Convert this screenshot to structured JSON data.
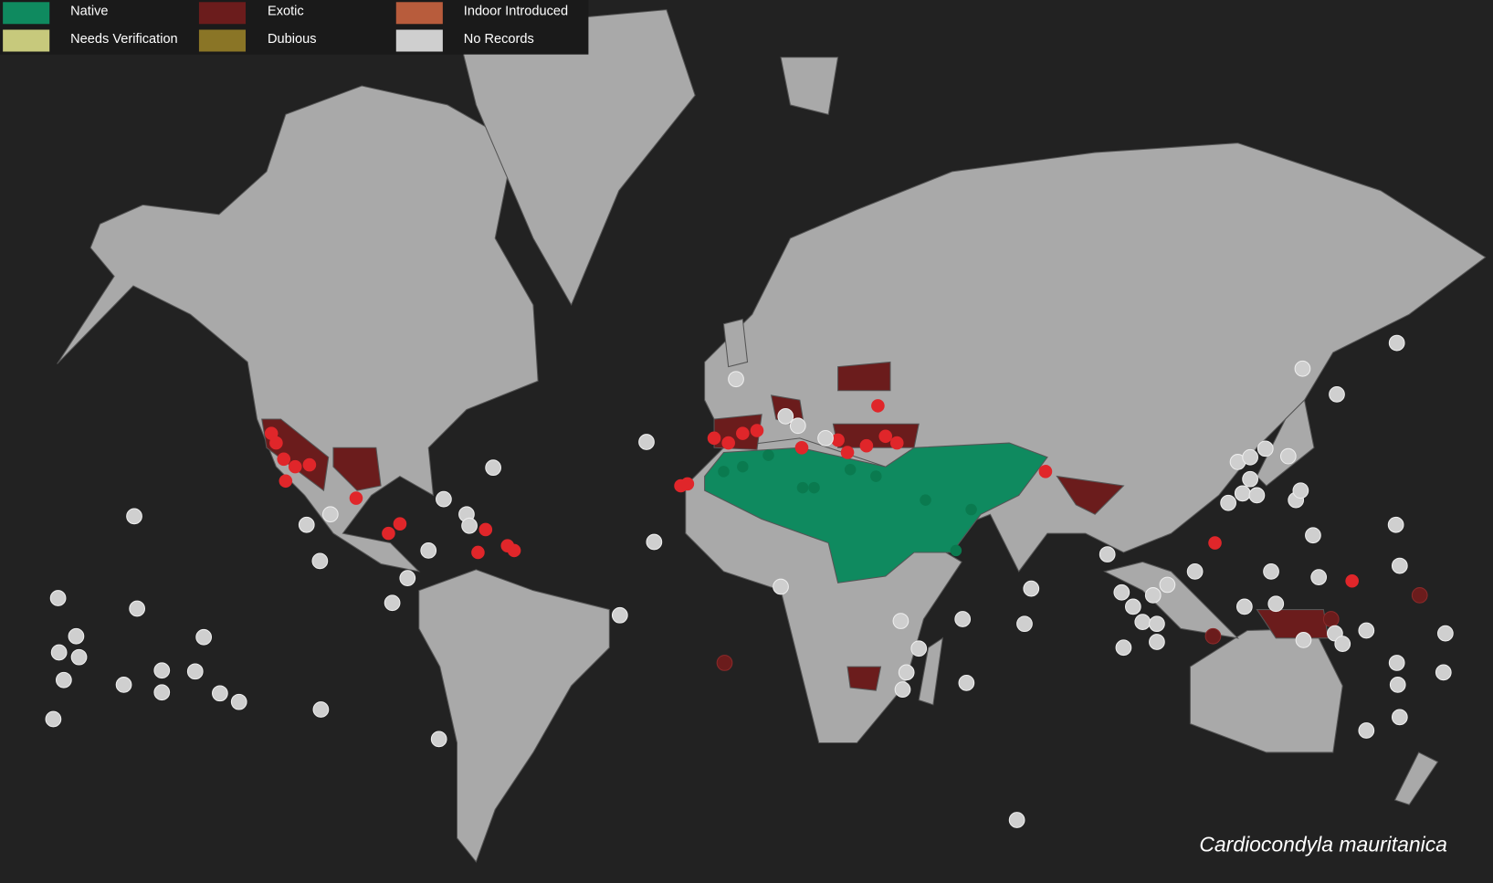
{
  "legend": [
    {
      "name": "Native",
      "color": "#0f8a5f"
    },
    {
      "name": "Needs Verification",
      "color": "#c7c97c"
    },
    {
      "name": "Exotic",
      "color": "#6b1c1c"
    },
    {
      "name": "Dubious",
      "color": "#8a7526"
    },
    {
      "name": "Indoor Introduced",
      "color": "#b85c3c"
    },
    {
      "name": "No Records",
      "color": "#cfcfcf"
    }
  ],
  "species": "Cardiocondyla mauritanica"
}
